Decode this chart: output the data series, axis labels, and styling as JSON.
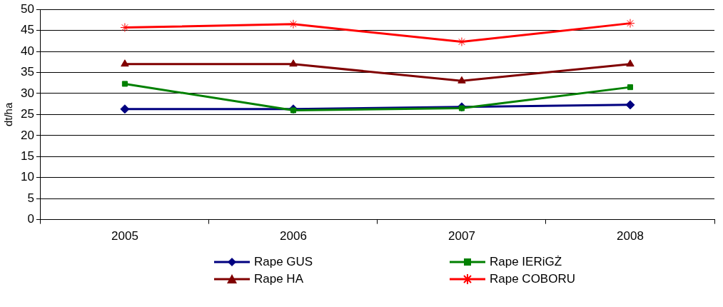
{
  "chart_data": {
    "type": "line",
    "ylabel": "dt/ha",
    "categories": [
      "2005",
      "2006",
      "2007",
      "2008"
    ],
    "series": [
      {
        "name": "Rape GUS",
        "color": "#000080",
        "marker": "diamond",
        "values": [
          26.3,
          26.3,
          26.8,
          27.3
        ]
      },
      {
        "name": "Rape IERiGŻ",
        "color": "#008000",
        "marker": "square",
        "values": [
          32.3,
          26,
          26.5,
          31.5
        ]
      },
      {
        "name": "Rape HA",
        "color": "#800000",
        "marker": "triangle",
        "values": [
          37,
          37,
          33,
          37
        ]
      },
      {
        "name": "Rape COBORU",
        "color": "#ff0000",
        "marker": "cross",
        "values": [
          45.7,
          46.5,
          42.3,
          46.7
        ]
      }
    ],
    "ylim": [
      0,
      50
    ],
    "yticks": [
      0,
      5,
      10,
      15,
      20,
      25,
      30,
      35,
      40,
      45,
      50
    ],
    "grid": "y",
    "legend": "bottom"
  }
}
